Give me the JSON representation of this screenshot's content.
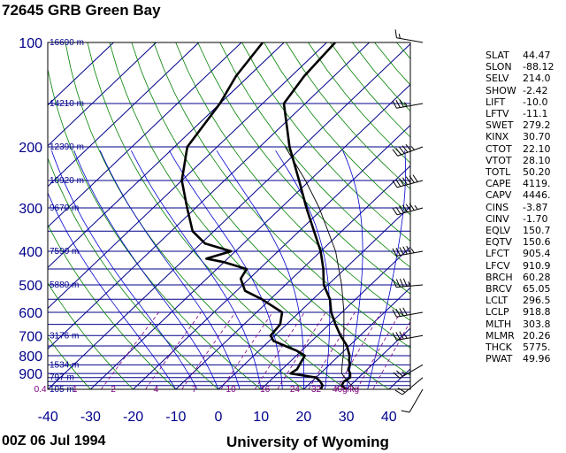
{
  "header": {
    "title": "72645 GRB Green Bay"
  },
  "footer": {
    "time": "00Z 06 Jul 1994",
    "source": "University of Wyoming"
  },
  "colors": {
    "isobar": "#00008b",
    "isotherm": "#00008b",
    "dry_adiabat": "#008000",
    "moist_adiabat": "#0000cd",
    "mixing_ratio": "#800080",
    "profile": "#000000"
  },
  "chart_data": {
    "type": "line",
    "title": "72645 GRB Green Bay",
    "x_axis": {
      "ticks": [
        -40,
        -30,
        -20,
        -10,
        0,
        10,
        20,
        30,
        40
      ],
      "range": [
        -40,
        45
      ]
    },
    "y_axis": {
      "scale": "log",
      "ticks": [
        100,
        200,
        300,
        400,
        500,
        600,
        700,
        800,
        900
      ],
      "range": [
        1000,
        100
      ]
    },
    "height_labels": [
      {
        "p": 100,
        "text": "16690 m"
      },
      {
        "p": 150,
        "text": "14210 m"
      },
      {
        "p": 200,
        "text": "12390 m"
      },
      {
        "p": 250,
        "text": "10920 m"
      },
      {
        "p": 300,
        "text": "9670 m"
      },
      {
        "p": 400,
        "text": "7590 m"
      },
      {
        "p": 500,
        "text": "5880 m"
      },
      {
        "p": 700,
        "text": "3176 m"
      },
      {
        "p": 850,
        "text": "1534 m"
      },
      {
        "p": 925,
        "text": "797 m"
      },
      {
        "p": 1000,
        "text": "105 m"
      }
    ],
    "mixing_ratio_labels": [
      {
        "t": -37,
        "text": "0.4"
      },
      {
        "t": -28,
        "text": "1"
      },
      {
        "t": -19,
        "text": "2"
      },
      {
        "t": -9,
        "text": "4"
      },
      {
        "t": 0,
        "text": "7"
      },
      {
        "t": 8,
        "text": "10"
      },
      {
        "t": 16,
        "text": "16"
      },
      {
        "t": 23,
        "text": "24"
      },
      {
        "t": 28,
        "text": "32"
      },
      {
        "t": 33,
        "text": "40g/kg"
      }
    ],
    "series": [
      {
        "name": "temperature",
        "points": [
          [
            1000,
            30
          ],
          [
            975,
            28
          ],
          [
            950,
            27.5
          ],
          [
            925,
            28
          ],
          [
            900,
            27
          ],
          [
            875,
            25.5
          ],
          [
            850,
            24.8
          ],
          [
            825,
            23.5
          ],
          [
            800,
            22.5
          ],
          [
            775,
            21
          ],
          [
            750,
            19.5
          ],
          [
            700,
            15.4
          ],
          [
            650,
            11.5
          ],
          [
            600,
            7.5
          ],
          [
            550,
            4
          ],
          [
            500,
            -1
          ],
          [
            450,
            -5
          ],
          [
            400,
            -10
          ],
          [
            350,
            -16.5
          ],
          [
            300,
            -24
          ],
          [
            250,
            -32.5
          ],
          [
            200,
            -43
          ],
          [
            150,
            -55
          ],
          [
            125,
            -57
          ],
          [
            100,
            -58
          ]
        ]
      },
      {
        "name": "dewpoint",
        "points": [
          [
            1000,
            24
          ],
          [
            975,
            23.5
          ],
          [
            950,
            22
          ],
          [
            925,
            20
          ],
          [
            900,
            13
          ],
          [
            875,
            13.5
          ],
          [
            850,
            13
          ],
          [
            825,
            12.5
          ],
          [
            800,
            12
          ],
          [
            775,
            9
          ],
          [
            750,
            5
          ],
          [
            725,
            1
          ],
          [
            700,
            -1
          ],
          [
            650,
            -1.5
          ],
          [
            600,
            -4
          ],
          [
            550,
            -12
          ],
          [
            520,
            -18
          ],
          [
            480,
            -22
          ],
          [
            450,
            -23
          ],
          [
            430,
            -30
          ],
          [
            420,
            -35
          ],
          [
            400,
            -31
          ],
          [
            380,
            -39
          ],
          [
            350,
            -45
          ],
          [
            300,
            -52
          ],
          [
            250,
            -60
          ],
          [
            200,
            -67
          ],
          [
            150,
            -70
          ],
          [
            125,
            -73
          ],
          [
            100,
            -75
          ]
        ]
      },
      {
        "name": "parcel",
        "points": [
          [
            1000,
            32
          ],
          [
            950,
            28.5
          ],
          [
            900,
            25
          ],
          [
            850,
            23
          ],
          [
            800,
            21
          ],
          [
            700,
            16.2
          ],
          [
            600,
            10.5
          ],
          [
            500,
            3.2
          ],
          [
            400,
            -6.5
          ],
          [
            300,
            -21
          ],
          [
            250,
            -31
          ],
          [
            200,
            -44
          ]
        ]
      }
    ],
    "wind_barbs": [
      {
        "p": 1000,
        "dir": 210,
        "kt": 10
      },
      {
        "p": 925,
        "dir": 230,
        "kt": 20
      },
      {
        "p": 850,
        "dir": 240,
        "kt": 25
      },
      {
        "p": 700,
        "dir": 260,
        "kt": 35
      },
      {
        "p": 600,
        "dir": 260,
        "kt": 40
      },
      {
        "p": 500,
        "dir": 265,
        "kt": 45
      },
      {
        "p": 400,
        "dir": 260,
        "kt": 55
      },
      {
        "p": 300,
        "dir": 255,
        "kt": 65
      },
      {
        "p": 250,
        "dir": 255,
        "kt": 70
      },
      {
        "p": 200,
        "dir": 250,
        "kt": 55
      },
      {
        "p": 150,
        "dir": 260,
        "kt": 35
      },
      {
        "p": 100,
        "dir": 280,
        "kt": 15
      }
    ]
  },
  "indices": [
    {
      "key": "SLAT",
      "value": "44.47"
    },
    {
      "key": "SLON",
      "value": "-88.12"
    },
    {
      "key": "SELV",
      "value": "214.0"
    },
    {
      "key": "SHOW",
      "value": "-2.42"
    },
    {
      "key": "LIFT",
      "value": "-10.0"
    },
    {
      "key": "LFTV",
      "value": "-11.1"
    },
    {
      "key": "SWET",
      "value": "279.2"
    },
    {
      "key": "KINX",
      "value": "30.70"
    },
    {
      "key": "CTOT",
      "value": "22.10"
    },
    {
      "key": "VTOT",
      "value": "28.10"
    },
    {
      "key": "TOTL",
      "value": "50.20"
    },
    {
      "key": "CAPE",
      "value": "4119."
    },
    {
      "key": "CAPV",
      "value": "4446."
    },
    {
      "key": "CINS",
      "value": "-3.87"
    },
    {
      "key": "CINV",
      "value": "-1.70"
    },
    {
      "key": "EQLV",
      "value": "150.7"
    },
    {
      "key": "EQTV",
      "value": "150.6"
    },
    {
      "key": "LFCT",
      "value": "905.4"
    },
    {
      "key": "LFCV",
      "value": "910.9"
    },
    {
      "key": "BRCH",
      "value": "60.28"
    },
    {
      "key": "BRCV",
      "value": "65.05"
    },
    {
      "key": "LCLT",
      "value": "296.5"
    },
    {
      "key": "LCLP",
      "value": "918.8"
    },
    {
      "key": "MLTH",
      "value": "303.8"
    },
    {
      "key": "MLMR",
      "value": "20.26"
    },
    {
      "key": "THCK",
      "value": "5775."
    },
    {
      "key": "PWAT",
      "value": "49.96"
    }
  ]
}
